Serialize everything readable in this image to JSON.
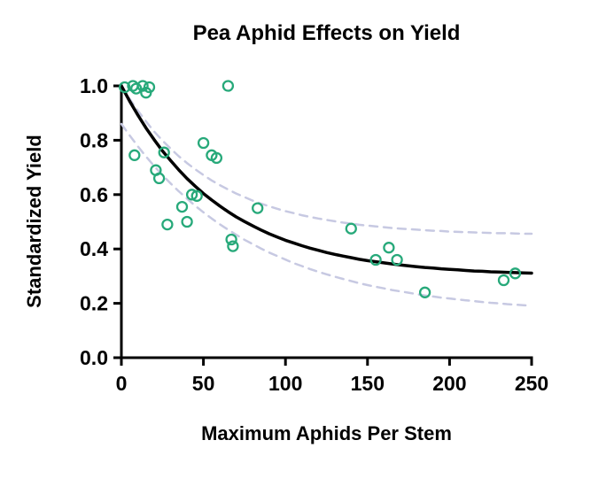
{
  "chart_data": {
    "type": "scatter",
    "title": "Pea Aphid Effects on Yield",
    "xlabel": "Maximum Aphids Per Stem",
    "ylabel": "Standardized Yield",
    "xlim": [
      0,
      250
    ],
    "ylim": [
      0,
      1.0
    ],
    "xtick_values": [
      0,
      50,
      100,
      150,
      200,
      250
    ],
    "xtick_labels": [
      "0",
      "50",
      "100",
      "150",
      "200",
      "250"
    ],
    "ytick_values": [
      0,
      0.2,
      0.4,
      0.6,
      0.8,
      1.0
    ],
    "ytick_labels": [
      "0.0",
      "0.2",
      "0.4",
      "0.6",
      "0.8",
      "1.0"
    ],
    "grid": false,
    "legend": null,
    "points": [
      [
        2,
        0.995
      ],
      [
        7,
        1.0
      ],
      [
        9,
        0.99
      ],
      [
        13,
        1.0
      ],
      [
        15,
        0.975
      ],
      [
        17,
        0.995
      ],
      [
        8,
        0.745
      ],
      [
        21,
        0.69
      ],
      [
        23,
        0.66
      ],
      [
        26,
        0.755
      ],
      [
        28,
        0.49
      ],
      [
        37,
        0.555
      ],
      [
        40,
        0.5
      ],
      [
        43,
        0.6
      ],
      [
        46,
        0.595
      ],
      [
        50,
        0.79
      ],
      [
        55,
        0.745
      ],
      [
        58,
        0.735
      ],
      [
        65,
        1.0
      ],
      [
        67,
        0.435
      ],
      [
        68,
        0.41
      ],
      [
        83,
        0.55
      ],
      [
        140,
        0.475
      ],
      [
        155,
        0.36
      ],
      [
        163,
        0.405
      ],
      [
        168,
        0.36
      ],
      [
        185,
        0.24
      ],
      [
        233,
        0.285
      ],
      [
        240,
        0.31
      ]
    ],
    "curves": {
      "x": [
        0,
        5,
        10,
        15,
        20,
        25,
        30,
        35,
        40,
        45,
        50,
        55,
        60,
        65,
        70,
        75,
        80,
        85,
        90,
        95,
        100,
        105,
        110,
        115,
        120,
        125,
        130,
        135,
        140,
        145,
        150,
        155,
        160,
        165,
        170,
        175,
        180,
        185,
        190,
        195,
        200,
        205,
        210,
        215,
        220,
        225,
        230,
        235,
        240,
        245,
        250
      ],
      "fit": [
        1.0,
        0.944,
        0.893,
        0.845,
        0.802,
        0.761,
        0.725,
        0.691,
        0.659,
        0.631,
        0.604,
        0.58,
        0.558,
        0.537,
        0.518,
        0.501,
        0.485,
        0.47,
        0.456,
        0.444,
        0.432,
        0.422,
        0.412,
        0.403,
        0.395,
        0.387,
        0.38,
        0.374,
        0.368,
        0.362,
        0.357,
        0.353,
        0.349,
        0.345,
        0.341,
        0.338,
        0.335,
        0.332,
        0.33,
        0.327,
        0.325,
        0.323,
        0.321,
        0.319,
        0.318,
        0.316,
        0.315,
        0.314,
        0.313,
        0.312,
        0.311
      ],
      "ci_upper": [
        1.0,
        0.952,
        0.909,
        0.869,
        0.832,
        0.799,
        0.769,
        0.741,
        0.716,
        0.693,
        0.672,
        0.652,
        0.635,
        0.619,
        0.604,
        0.591,
        0.578,
        0.567,
        0.557,
        0.548,
        0.539,
        0.532,
        0.524,
        0.518,
        0.512,
        0.507,
        0.502,
        0.497,
        0.493,
        0.489,
        0.486,
        0.483,
        0.48,
        0.477,
        0.475,
        0.473,
        0.471,
        0.469,
        0.467,
        0.466,
        0.464,
        0.463,
        0.462,
        0.461,
        0.46,
        0.459,
        0.458,
        0.458,
        0.457,
        0.456,
        0.456
      ],
      "ci_lower": [
        0.86,
        0.818,
        0.778,
        0.74,
        0.705,
        0.672,
        0.641,
        0.612,
        0.585,
        0.559,
        0.535,
        0.512,
        0.491,
        0.471,
        0.452,
        0.434,
        0.418,
        0.402,
        0.387,
        0.374,
        0.361,
        0.348,
        0.337,
        0.326,
        0.316,
        0.307,
        0.298,
        0.29,
        0.282,
        0.274,
        0.267,
        0.261,
        0.255,
        0.249,
        0.244,
        0.239,
        0.234,
        0.229,
        0.225,
        0.221,
        0.218,
        0.214,
        0.211,
        0.208,
        0.205,
        0.202,
        0.2,
        0.197,
        0.195,
        0.193,
        0.191
      ]
    },
    "colors": {
      "marker": "#27a97a",
      "fit": "#000000",
      "ci_band": "#c7c9e2",
      "axis": "#000000",
      "background": "#ffffff"
    }
  }
}
